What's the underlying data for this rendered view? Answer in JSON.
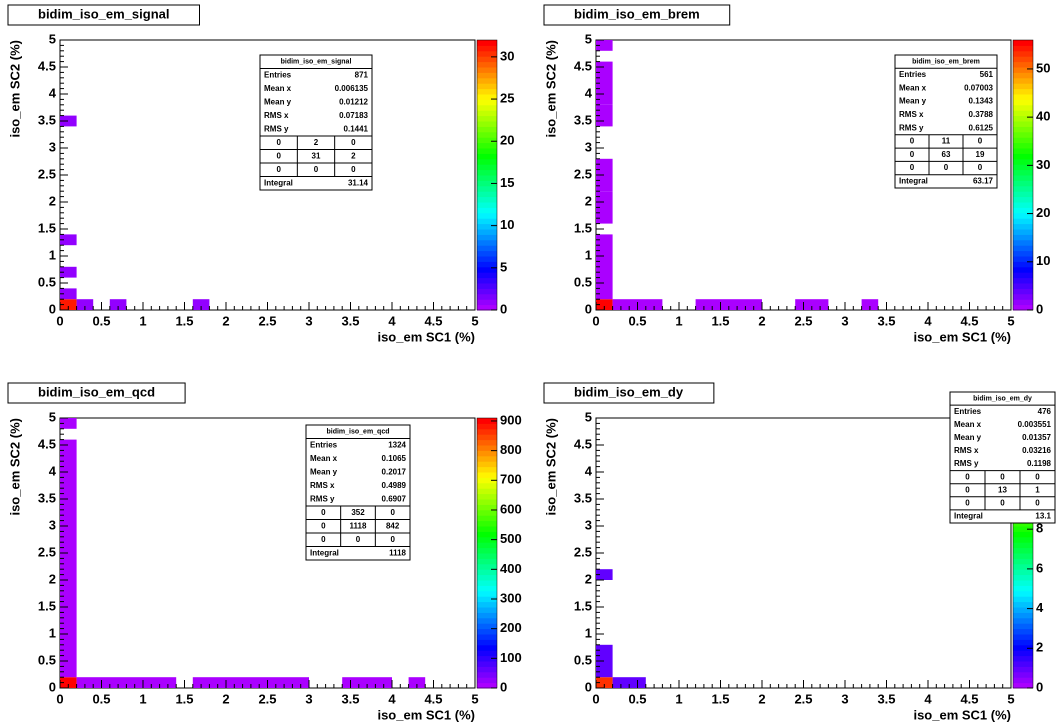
{
  "chart_data": [
    {
      "type": "heatmap",
      "title": "bidim_iso_em_signal",
      "xlabel": "iso_em SC1 (%)",
      "ylabel": "iso_em SC2 (%)",
      "xlim": [
        0,
        5
      ],
      "ylim": [
        0,
        5
      ],
      "xticks": [
        0,
        0.5,
        1,
        1.5,
        2,
        2.5,
        3,
        3.5,
        4,
        4.5,
        5
      ],
      "yticks": [
        0,
        0.5,
        1,
        1.5,
        2,
        2.5,
        3,
        3.5,
        4,
        4.5,
        5
      ],
      "zlim": [
        0,
        32
      ],
      "zticks": [
        0,
        5,
        10,
        15,
        20,
        25,
        30
      ],
      "palette": "rainbow",
      "cells": [
        {
          "x": [
            0,
            0.2
          ],
          "y": [
            0,
            0.2
          ],
          "value": 31
        },
        {
          "x": [
            0,
            0.2
          ],
          "y": [
            0.2,
            0.4
          ],
          "value": 1
        },
        {
          "x": [
            0,
            0.2
          ],
          "y": [
            0.6,
            0.8
          ],
          "value": 1
        },
        {
          "x": [
            0,
            0.2
          ],
          "y": [
            1.2,
            1.4
          ],
          "value": 1
        },
        {
          "x": [
            0,
            0.2
          ],
          "y": [
            3.4,
            3.6
          ],
          "value": 1
        },
        {
          "x": [
            0.2,
            0.4
          ],
          "y": [
            0,
            0.2
          ],
          "value": 1
        },
        {
          "x": [
            0.6,
            0.8
          ],
          "y": [
            0,
            0.2
          ],
          "value": 1
        },
        {
          "x": [
            1.6,
            1.8
          ],
          "y": [
            0,
            0.2
          ],
          "value": 1
        }
      ],
      "stats": {
        "rows": [
          [
            "Entries",
            871
          ],
          [
            "Mean x",
            0.006135
          ],
          [
            "Mean y",
            0.01212
          ],
          [
            "RMS x",
            0.07183
          ],
          [
            "RMS y",
            0.1441
          ]
        ],
        "table": [
          [
            0,
            2,
            0
          ],
          [
            0,
            31,
            2
          ],
          [
            0,
            0,
            0
          ]
        ],
        "integral": [
          "Integral",
          31.14
        ]
      }
    },
    {
      "type": "heatmap",
      "title": "bidim_iso_em_brem",
      "xlabel": "iso_em SC1 (%)",
      "ylabel": "iso_em SC2 (%)",
      "xlim": [
        0,
        5
      ],
      "ylim": [
        0,
        5
      ],
      "xticks": [
        0,
        0.5,
        1,
        1.5,
        2,
        2.5,
        3,
        3.5,
        4,
        4.5,
        5
      ],
      "yticks": [
        0,
        0.5,
        1,
        1.5,
        2,
        2.5,
        3,
        3.5,
        4,
        4.5,
        5
      ],
      "zlim": [
        0,
        56
      ],
      "zticks": [
        0,
        10,
        20,
        30,
        40,
        50
      ],
      "palette": "rainbow",
      "cells": [
        {
          "x": [
            0,
            0.2
          ],
          "y": [
            0,
            0.2
          ],
          "value": 56
        },
        {
          "x": [
            0,
            0.2
          ],
          "y": [
            0.2,
            1.4
          ],
          "value": 1
        },
        {
          "x": [
            0,
            0.2
          ],
          "y": [
            1.6,
            2.2
          ],
          "value": 1
        },
        {
          "x": [
            0,
            0.2
          ],
          "y": [
            2.2,
            2.8
          ],
          "value": 1
        },
        {
          "x": [
            0,
            0.2
          ],
          "y": [
            3.4,
            3.8
          ],
          "value": 1
        },
        {
          "x": [
            0,
            0.2
          ],
          "y": [
            3.8,
            4.6
          ],
          "value": 1
        },
        {
          "x": [
            0,
            0.2
          ],
          "y": [
            4.8,
            5
          ],
          "value": 1
        },
        {
          "x": [
            0.2,
            0.8
          ],
          "y": [
            0,
            0.2
          ],
          "value": 1
        },
        {
          "x": [
            1.2,
            2
          ],
          "y": [
            0,
            0.2
          ],
          "value": 1
        },
        {
          "x": [
            2.4,
            2.8
          ],
          "y": [
            0,
            0.2
          ],
          "value": 1
        },
        {
          "x": [
            3.2,
            3.4
          ],
          "y": [
            0,
            0.2
          ],
          "value": 1
        }
      ],
      "stats": {
        "rows": [
          [
            "Entries",
            561
          ],
          [
            "Mean x",
            0.07003
          ],
          [
            "Mean y",
            0.1343
          ],
          [
            "RMS x",
            0.3788
          ],
          [
            "RMS y",
            0.6125
          ]
        ],
        "table": [
          [
            0,
            11,
            0
          ],
          [
            0,
            63,
            19
          ],
          [
            0,
            0,
            0
          ]
        ],
        "integral": [
          "Integral",
          63.17
        ]
      }
    },
    {
      "type": "heatmap",
      "title": "bidim_iso_em_qcd",
      "xlabel": "iso_em SC1 (%)",
      "ylabel": "iso_em SC2 (%)",
      "xlim": [
        0,
        5
      ],
      "ylim": [
        0,
        5
      ],
      "xticks": [
        0,
        0.5,
        1,
        1.5,
        2,
        2.5,
        3,
        3.5,
        4,
        4.5,
        5
      ],
      "yticks": [
        0,
        0.5,
        1,
        1.5,
        2,
        2.5,
        3,
        3.5,
        4,
        4.5,
        5
      ],
      "zlim": [
        0,
        910
      ],
      "zticks": [
        0,
        100,
        200,
        300,
        400,
        500,
        600,
        700,
        800,
        900
      ],
      "palette": "rainbow",
      "cells": [
        {
          "x": [
            0,
            0.2
          ],
          "y": [
            0,
            0.2
          ],
          "value": 900
        },
        {
          "x": [
            0,
            0.2
          ],
          "y": [
            0.2,
            3
          ],
          "value": 10
        },
        {
          "x": [
            0,
            0.2
          ],
          "y": [
            3,
            4.6
          ],
          "value": 10
        },
        {
          "x": [
            0,
            0.2
          ],
          "y": [
            4.8,
            5
          ],
          "value": 10
        },
        {
          "x": [
            0.2,
            1.4
          ],
          "y": [
            0,
            0.2
          ],
          "value": 10
        },
        {
          "x": [
            1.6,
            3
          ],
          "y": [
            0,
            0.2
          ],
          "value": 10
        },
        {
          "x": [
            3.4,
            4
          ],
          "y": [
            0,
            0.2
          ],
          "value": 10
        },
        {
          "x": [
            4.2,
            4.4
          ],
          "y": [
            0,
            0.2
          ],
          "value": 10
        }
      ],
      "stats": {
        "rows": [
          [
            "Entries",
            1324
          ],
          [
            "Mean x",
            0.1065
          ],
          [
            "Mean y",
            0.2017
          ],
          [
            "RMS x",
            0.4989
          ],
          [
            "RMS y",
            0.6907
          ]
        ],
        "table": [
          [
            0,
            352,
            0
          ],
          [
            0,
            1118,
            842
          ],
          [
            0,
            0,
            0
          ]
        ],
        "integral": [
          "Integral",
          1118
        ]
      }
    },
    {
      "type": "heatmap",
      "title": "bidim_iso_em_dy",
      "xlabel": "iso_em SC1 (%)",
      "ylabel": "iso_em SC2 (%)",
      "xlim": [
        0,
        5
      ],
      "ylim": [
        0,
        5
      ],
      "xticks": [
        0,
        0.5,
        1,
        1.5,
        2,
        2.5,
        3,
        3.5,
        4,
        4.5,
        5
      ],
      "yticks": [
        0,
        0.5,
        1,
        1.5,
        2,
        2.5,
        3,
        3.5,
        4,
        4.5,
        5
      ],
      "zlim": [
        0,
        13.6
      ],
      "zticks": [
        0,
        2,
        4,
        6,
        8,
        10,
        12
      ],
      "palette": "rainbow",
      "cells": [
        {
          "x": [
            0,
            0.2
          ],
          "y": [
            0,
            0.2
          ],
          "value": 13
        },
        {
          "x": [
            0,
            0.2
          ],
          "y": [
            0.2,
            0.8
          ],
          "value": 1
        },
        {
          "x": [
            0,
            0.2
          ],
          "y": [
            2,
            2.2
          ],
          "value": 1
        },
        {
          "x": [
            0.2,
            0.6
          ],
          "y": [
            0,
            0.2
          ],
          "value": 1
        }
      ],
      "stats": {
        "rows": [
          [
            "Entries",
            476
          ],
          [
            "Mean x",
            0.003551
          ],
          [
            "Mean y",
            0.01357
          ],
          [
            "RMS x",
            0.03216
          ],
          [
            "RMS y",
            0.1198
          ]
        ],
        "table": [
          [
            0,
            0,
            0
          ],
          [
            0,
            13,
            1
          ],
          [
            0,
            0,
            0
          ]
        ],
        "integral": [
          "Integral",
          13.1
        ]
      }
    }
  ]
}
